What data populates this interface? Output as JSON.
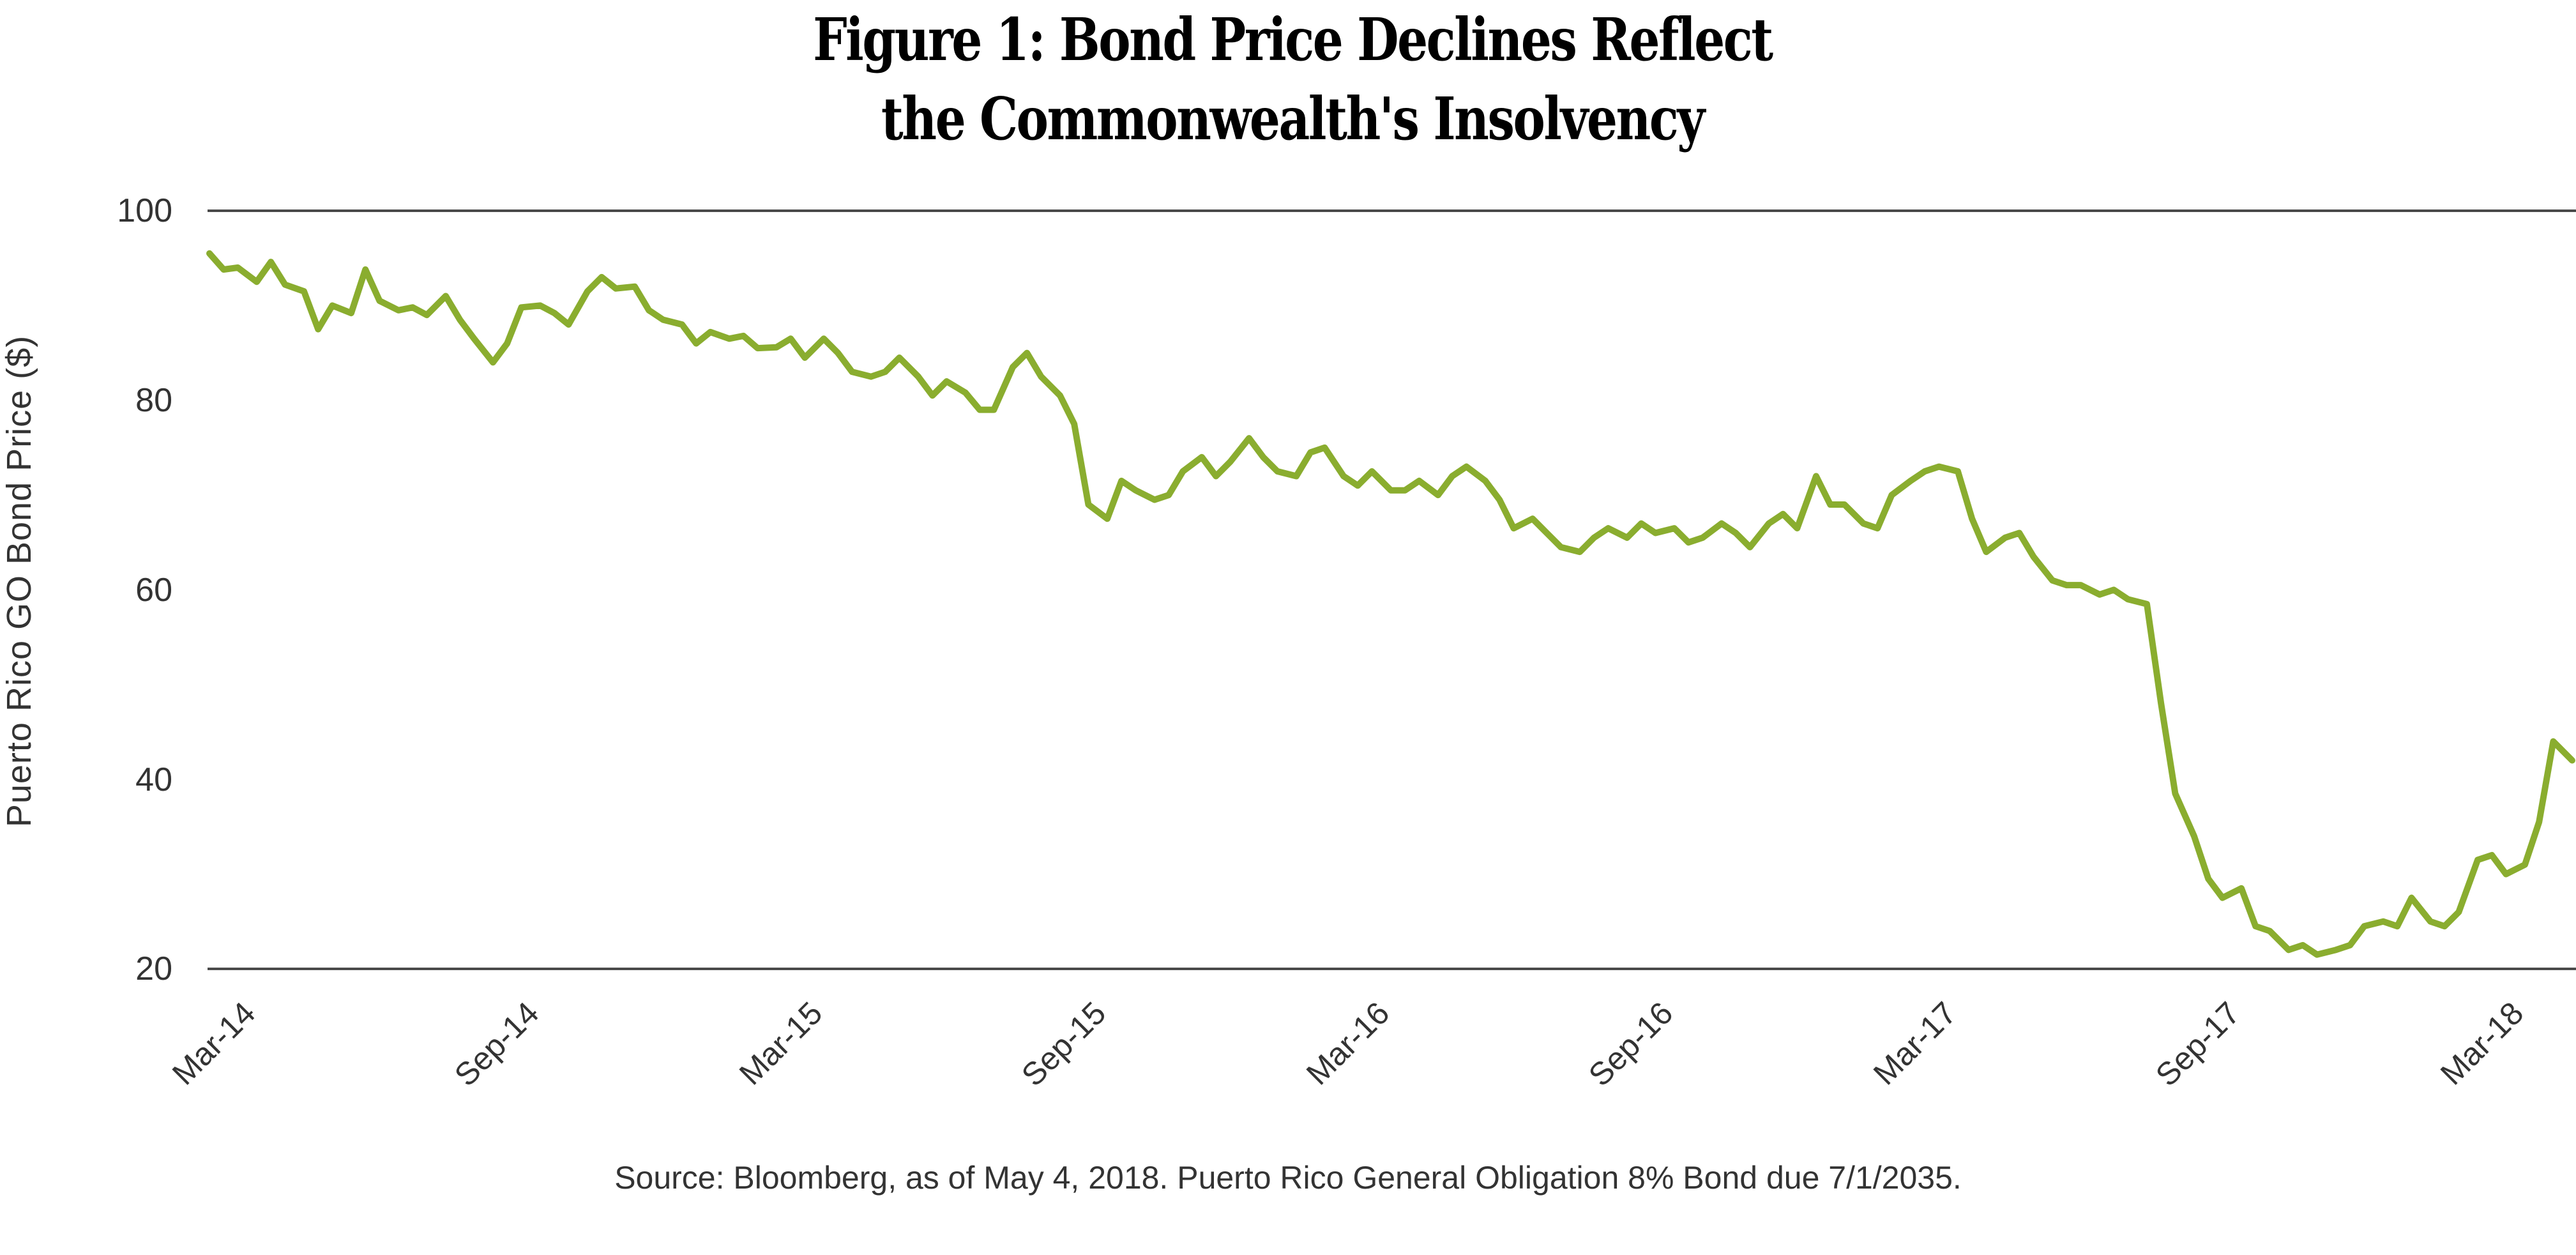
{
  "title": {
    "line1": "Figure 1: Bond Price Declines Reflect",
    "line2": "the Commonwealth's Insolvency"
  },
  "source": "Source: Bloomberg, as of May 4, 2018. Puerto Rico General Obligation 8% Bond due 7/1/2035.",
  "colors": {
    "line": "#8aad2f",
    "gridline": "#4a4a4a",
    "text": "#333333",
    "title": "#000000"
  },
  "chart_data": {
    "type": "line",
    "title": "Figure 1: Bond Price Declines Reflect the Commonwealth's Insolvency",
    "xlabel": "",
    "ylabel": "Puerto Rico GO Bond Price ($)",
    "ylim": [
      20,
      100
    ],
    "yticks": [
      100,
      80,
      60,
      40,
      20
    ],
    "gridlines_at": [
      100,
      20
    ],
    "xtick_labels": [
      "Mar-14",
      "Sep-14",
      "Mar-15",
      "Sep-15",
      "Mar-16",
      "Sep-16",
      "Mar-17",
      "Sep-17",
      "Mar-18"
    ],
    "legend": null,
    "series": [
      {
        "name": "Puerto Rico GO 8% Bond due 7/1/2035",
        "x_months_since_mar14": [
          0.0,
          0.3,
          0.6,
          1.0,
          1.3,
          1.6,
          2.0,
          2.3,
          2.6,
          3.0,
          3.3,
          3.6,
          4.0,
          4.3,
          4.6,
          5.0,
          5.3,
          5.6,
          6.0,
          6.3,
          6.6,
          7.0,
          7.3,
          7.6,
          8.0,
          8.3,
          8.6,
          9.0,
          9.3,
          9.6,
          10.0,
          10.3,
          10.6,
          11.0,
          11.3,
          11.6,
          12.0,
          12.3,
          12.6,
          13.0,
          13.3,
          13.6,
          14.0,
          14.3,
          14.6,
          15.0,
          15.3,
          15.6,
          16.0,
          16.3,
          16.6,
          17.0,
          17.3,
          17.6,
          18.0,
          18.3,
          18.6,
          19.0,
          19.3,
          19.6,
          20.0,
          20.3,
          20.6,
          21.0,
          21.3,
          21.6,
          22.0,
          22.3,
          22.6,
          23.0,
          23.3,
          23.6,
          24.0,
          24.3,
          24.6,
          25.0,
          25.3,
          25.6,
          26.0,
          26.3,
          26.6,
          27.0,
          27.3,
          27.6,
          28.0,
          28.3,
          28.6,
          29.0,
          29.3,
          29.6,
          30.0,
          30.3,
          30.6,
          31.0,
          31.3,
          31.6,
          32.0,
          32.3,
          32.6,
          33.0,
          33.3,
          33.6,
          34.0,
          34.3,
          34.6,
          35.0,
          35.3,
          35.6,
          36.0,
          36.3,
          36.6,
          37.0,
          37.3,
          37.6,
          38.0,
          38.3,
          38.6,
          39.0,
          39.3,
          39.6,
          40.0,
          40.3,
          40.6,
          41.0,
          41.3,
          41.6,
          42.0,
          42.3,
          42.6,
          43.0,
          43.3,
          43.6,
          44.0,
          44.3,
          44.6,
          45.0,
          45.3,
          45.6,
          46.0,
          46.3,
          46.6,
          47.0,
          47.3,
          47.6,
          48.0,
          48.3,
          48.6,
          49.0,
          49.3,
          49.6,
          50.0
        ],
        "values": [
          95.5,
          93.8,
          94.0,
          92.5,
          94.6,
          92.2,
          91.5,
          87.5,
          90.0,
          89.2,
          93.8,
          90.5,
          89.5,
          89.8,
          89.0,
          91.0,
          88.5,
          86.5,
          84.0,
          86.0,
          89.8,
          90.0,
          89.2,
          88.0,
          91.5,
          93.0,
          91.8,
          92.0,
          89.5,
          88.5,
          88.0,
          86.0,
          87.2,
          86.5,
          86.8,
          85.5,
          85.6,
          86.5,
          84.5,
          86.5,
          85.0,
          83.0,
          82.5,
          83.0,
          84.5,
          82.5,
          80.5,
          82.0,
          80.8,
          79.0,
          79.0,
          83.5,
          85.0,
          82.5,
          80.5,
          77.5,
          69.0,
          67.5,
          71.5,
          70.5,
          69.5,
          70.0,
          72.5,
          74.0,
          72.0,
          73.5,
          76.0,
          74.0,
          72.5,
          72.0,
          74.5,
          75.0,
          72.0,
          71.0,
          72.5,
          70.5,
          70.5,
          71.5,
          70.0,
          72.0,
          73.0,
          71.5,
          69.5,
          66.5,
          67.5,
          66.0,
          64.5,
          64.0,
          65.5,
          66.5,
          65.5,
          67.0,
          66.0,
          66.5,
          65.0,
          65.5,
          67.0,
          66.0,
          64.5,
          67.0,
          68.0,
          66.5,
          72.0,
          69.0,
          69.0,
          67.0,
          66.5,
          70.0,
          71.5,
          72.5,
          73.0,
          72.5,
          67.5,
          64.0,
          65.5,
          66.0,
          63.5,
          61.0,
          60.5,
          60.5,
          59.5,
          60.0,
          59.0,
          58.5,
          48.0,
          38.5,
          34.0,
          29.5,
          27.5,
          28.5,
          24.5,
          24.0,
          22.0,
          22.5,
          21.5,
          22.0,
          22.5,
          24.5,
          25.0,
          24.5,
          27.5,
          25.0,
          24.5,
          26.0,
          31.5,
          32.0,
          30.0,
          31.0,
          35.5,
          44.0,
          42.0,
          41.5,
          40.6
        ]
      }
    ]
  }
}
